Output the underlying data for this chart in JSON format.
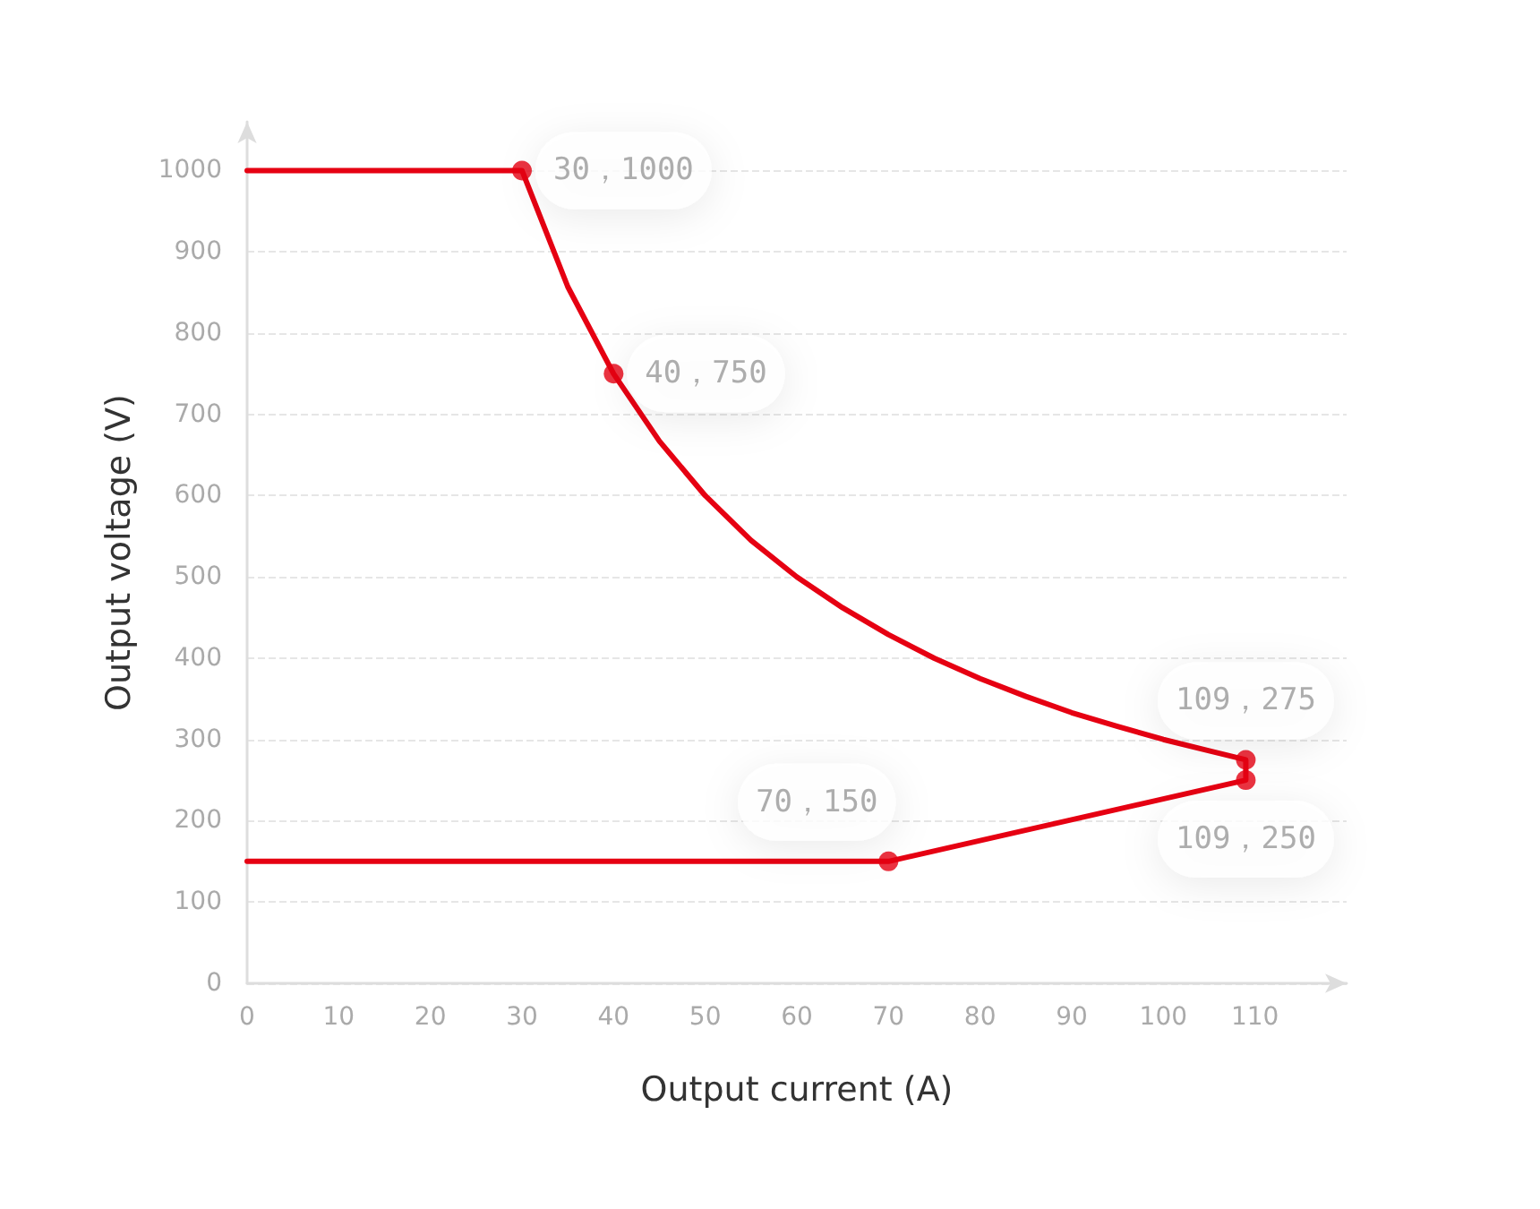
{
  "chart_data": {
    "type": "line",
    "xlabel": "Output current (A)",
    "ylabel": "Output voltage (V)",
    "xlim": [
      0,
      120
    ],
    "xticks": [
      0,
      10,
      20,
      30,
      40,
      50,
      60,
      70,
      80,
      90,
      100,
      110
    ],
    "ylim": [
      0,
      1060
    ],
    "yticks": [
      0,
      100,
      200,
      300,
      400,
      500,
      600,
      700,
      800,
      900,
      1000
    ],
    "grid": "y",
    "series": [
      {
        "type": "line",
        "color": "#e60012",
        "marker": "none",
        "line_style": "solid",
        "x": [
          0,
          30,
          35,
          40,
          45,
          50,
          55,
          60,
          65,
          70,
          75,
          80,
          85,
          90,
          95,
          100,
          105,
          109,
          109,
          70,
          0
        ],
        "values": [
          1000,
          1000,
          857,
          750,
          667,
          600,
          545,
          500,
          462,
          429,
          400,
          375,
          353,
          333,
          316,
          300,
          286,
          275,
          250,
          150,
          150
        ]
      },
      {
        "type": "scatter",
        "color": "#e60012",
        "marker": "circle",
        "x": [
          30,
          40,
          109,
          109,
          70
        ],
        "values": [
          1000,
          750,
          275,
          250,
          150
        ],
        "value_labels": [
          "30，1000",
          "40，750",
          "109，275",
          "109，250",
          "70，150"
        ]
      }
    ]
  }
}
